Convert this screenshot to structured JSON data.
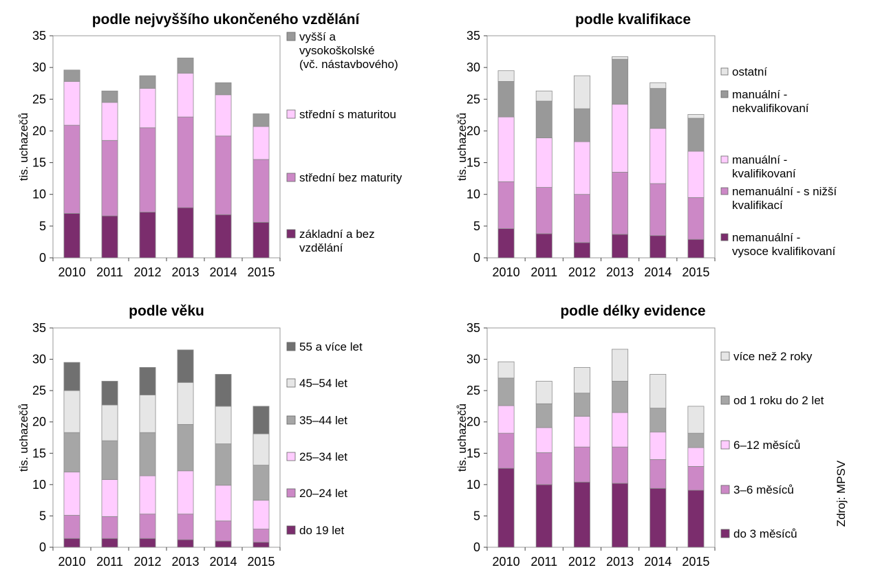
{
  "source": "Zdroj: MPSV",
  "chart_data": [
    {
      "type": "bar",
      "stacked": true,
      "title": "podle nejvyššího  ukončeného  vzdělání",
      "ylabel": "tis. uchazečů",
      "xlabel": "",
      "ylim": [
        0,
        35
      ],
      "yticks": [
        0,
        5,
        10,
        15,
        20,
        25,
        30,
        35
      ],
      "categories": [
        "2010",
        "2011",
        "2012",
        "2013",
        "2014",
        "2015"
      ],
      "series": [
        {
          "name": "základní a bez vzdělání",
          "color": "#7b2d6d",
          "values": [
            7.0,
            6.6,
            7.2,
            7.9,
            6.8,
            5.6
          ]
        },
        {
          "name": "střední bez maturity",
          "color": "#cc88c6",
          "values": [
            13.9,
            11.9,
            13.3,
            14.3,
            12.4,
            9.9
          ]
        },
        {
          "name": "střední s maturitou",
          "color": "#ffccff",
          "values": [
            6.9,
            6.0,
            6.2,
            6.9,
            6.5,
            5.2
          ]
        },
        {
          "name": "vyšší a vysokoškolské (vč. nástavbového)",
          "color": "#999999",
          "values": [
            1.8,
            1.8,
            2.0,
            2.4,
            1.9,
            2.0
          ]
        }
      ],
      "legend": [
        [
          "vyšší a",
          "vysokoškolské",
          "(vč. nástavbového)"
        ],
        [
          "střední s maturitou"
        ],
        [
          "střední bez maturity"
        ],
        [
          "základní a bez",
          "vzdělání"
        ]
      ]
    },
    {
      "type": "bar",
      "stacked": true,
      "title": "podle kvalifikace",
      "ylabel": "tis. uchazečů",
      "xlabel": "",
      "ylim": [
        0,
        35
      ],
      "yticks": [
        0,
        5,
        10,
        15,
        20,
        25,
        30,
        35
      ],
      "categories": [
        "2010",
        "2011",
        "2012",
        "2013",
        "2014",
        "2015"
      ],
      "series": [
        {
          "name": "nemanuální - vysoce kvalifikovaní",
          "color": "#7b2d6d",
          "values": [
            4.6,
            3.8,
            2.4,
            3.7,
            3.5,
            2.9
          ]
        },
        {
          "name": "nemanuální - s nižší kvalifikací",
          "color": "#cc88c6",
          "values": [
            7.4,
            7.3,
            7.6,
            9.8,
            8.2,
            6.6
          ]
        },
        {
          "name": "manuální - kvalifikovaní",
          "color": "#ffccff",
          "values": [
            10.2,
            7.8,
            8.3,
            10.7,
            8.7,
            7.3
          ]
        },
        {
          "name": "manuální - nekvalifikovaní",
          "color": "#999999",
          "values": [
            5.6,
            5.8,
            5.2,
            7.1,
            6.3,
            5.2
          ]
        },
        {
          "name": "ostatní",
          "color": "#e6e6e6",
          "values": [
            1.7,
            1.6,
            5.2,
            0.4,
            0.9,
            0.6
          ]
        }
      ],
      "legend": [
        [
          "ostatní"
        ],
        [
          "manuální -",
          "nekvalifikovaní"
        ],
        [
          "manuální -",
          "kvalifikovaní"
        ],
        [
          "nemanuální - s nižší",
          "kvalifikací"
        ],
        [
          "nemanuální -",
          "vysoce kvalifikovaní"
        ]
      ]
    },
    {
      "type": "bar",
      "stacked": true,
      "title": "podle věku",
      "ylabel": "tis. uchazečů",
      "xlabel": "",
      "ylim": [
        0,
        35
      ],
      "yticks": [
        0,
        5,
        10,
        15,
        20,
        25,
        30,
        35
      ],
      "categories": [
        "2010",
        "2011",
        "2012",
        "2013",
        "2014",
        "2015"
      ],
      "series": [
        {
          "name": "do 19 let",
          "color": "#7b2d6d",
          "values": [
            1.4,
            1.4,
            1.4,
            1.2,
            1.0,
            0.8
          ]
        },
        {
          "name": "20–24 let",
          "color": "#cc88c6",
          "values": [
            3.7,
            3.5,
            3.9,
            4.1,
            3.2,
            2.1
          ]
        },
        {
          "name": "25–34 let",
          "color": "#ffccff",
          "values": [
            6.9,
            5.9,
            6.1,
            6.9,
            5.7,
            4.6
          ]
        },
        {
          "name": "35–44 let",
          "color": "#a6a6a6",
          "values": [
            6.3,
            6.2,
            6.9,
            7.4,
            6.6,
            5.6
          ]
        },
        {
          "name": "45–54 let",
          "color": "#e6e6e6",
          "values": [
            6.7,
            5.7,
            6.0,
            6.7,
            6.0,
            5.0
          ]
        },
        {
          "name": "55 a více let",
          "color": "#707070",
          "values": [
            4.5,
            3.8,
            4.4,
            5.2,
            5.1,
            4.4
          ]
        }
      ],
      "legend": [
        [
          "55 a více let"
        ],
        [
          "45–54 let"
        ],
        [
          "35–44 let"
        ],
        [
          "25–34 let"
        ],
        [
          "20–24 let"
        ],
        [
          "do 19 let"
        ]
      ]
    },
    {
      "type": "bar",
      "stacked": true,
      "title": "podle délky  evidence",
      "ylabel": "tis. uchazečů",
      "xlabel": "",
      "ylim": [
        0,
        35
      ],
      "yticks": [
        0,
        5,
        10,
        15,
        20,
        25,
        30,
        35
      ],
      "categories": [
        "2010",
        "2011",
        "2012",
        "2013",
        "2014",
        "2015"
      ],
      "series": [
        {
          "name": "do 3 měsíců",
          "color": "#7b2d6d",
          "values": [
            12.6,
            10.0,
            10.4,
            10.2,
            9.4,
            9.1
          ]
        },
        {
          "name": "3–6 měsíců",
          "color": "#cc88c6",
          "values": [
            5.6,
            5.1,
            5.6,
            5.8,
            4.6,
            3.8
          ]
        },
        {
          "name": "6–12 měsíců",
          "color": "#ffccff",
          "values": [
            4.4,
            4.0,
            4.9,
            5.5,
            4.4,
            3.0
          ]
        },
        {
          "name": "od 1 roku do 2 let",
          "color": "#a6a6a6",
          "values": [
            4.4,
            3.8,
            3.7,
            5.0,
            3.8,
            2.3
          ]
        },
        {
          "name": "více než 2 roky",
          "color": "#e6e6e6",
          "values": [
            2.6,
            3.6,
            4.1,
            5.1,
            5.4,
            4.3
          ]
        }
      ],
      "legend": [
        [
          "více než 2 roky"
        ],
        [
          "od 1 roku do 2 let"
        ],
        [
          "6–12 měsíců"
        ],
        [
          "3–6 měsíců"
        ],
        [
          "do 3 měsíců"
        ]
      ]
    }
  ]
}
